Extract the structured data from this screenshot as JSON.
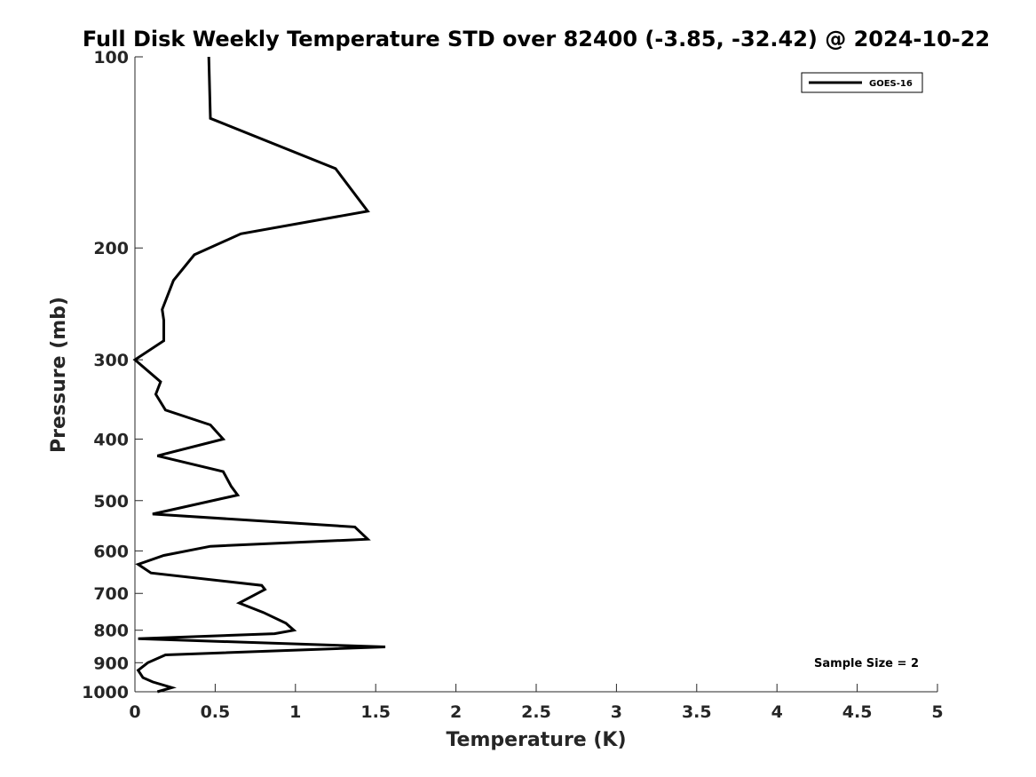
{
  "chart_data": {
    "type": "line",
    "title": "Full Disk Weekly Temperature STD over 82400 (-3.85, -32.42) @ 2024-10-22",
    "xlabel": "Temperature (K)",
    "ylabel": "Pressure (mb)",
    "xlim": [
      0,
      5
    ],
    "ylim": [
      1000,
      100
    ],
    "yscale": "log",
    "y_reversed": true,
    "xticks": [
      "0",
      "0.5",
      "1",
      "1.5",
      "2",
      "2.5",
      "3",
      "3.5",
      "4",
      "4.5",
      "5"
    ],
    "yticks": [
      "100",
      "200",
      "300",
      "400",
      "500",
      "600",
      "700",
      "800",
      "900",
      "1000"
    ],
    "grid": false,
    "legend_position": "top-right",
    "annotation": "Sample Size = 2",
    "series": [
      {
        "name": "GOES-16",
        "color": "#000000",
        "points": [
          [
            0.46,
            100
          ],
          [
            0.47,
            125
          ],
          [
            1.25,
            150
          ],
          [
            1.45,
            175
          ],
          [
            0.66,
            190
          ],
          [
            0.37,
            205
          ],
          [
            0.24,
            225
          ],
          [
            0.17,
            250
          ],
          [
            0.18,
            260
          ],
          [
            0.18,
            280
          ],
          [
            0.0,
            300
          ],
          [
            0.16,
            325
          ],
          [
            0.13,
            340
          ],
          [
            0.19,
            360
          ],
          [
            0.47,
            380
          ],
          [
            0.55,
            400
          ],
          [
            0.14,
            425
          ],
          [
            0.55,
            450
          ],
          [
            0.6,
            475
          ],
          [
            0.64,
            490
          ],
          [
            0.11,
            525
          ],
          [
            1.37,
            550
          ],
          [
            1.45,
            575
          ],
          [
            0.47,
            590
          ],
          [
            0.18,
            610
          ],
          [
            0.02,
            630
          ],
          [
            0.1,
            650
          ],
          [
            0.79,
            680
          ],
          [
            0.81,
            690
          ],
          [
            0.65,
            725
          ],
          [
            0.8,
            750
          ],
          [
            0.94,
            780
          ],
          [
            0.99,
            800
          ],
          [
            0.87,
            810
          ],
          [
            0.02,
            825
          ],
          [
            1.56,
            850
          ],
          [
            0.19,
            875
          ],
          [
            0.08,
            900
          ],
          [
            0.02,
            925
          ],
          [
            0.05,
            950
          ],
          [
            0.11,
            965
          ],
          [
            0.23,
            985
          ],
          [
            0.14,
            1000
          ]
        ]
      }
    ]
  }
}
